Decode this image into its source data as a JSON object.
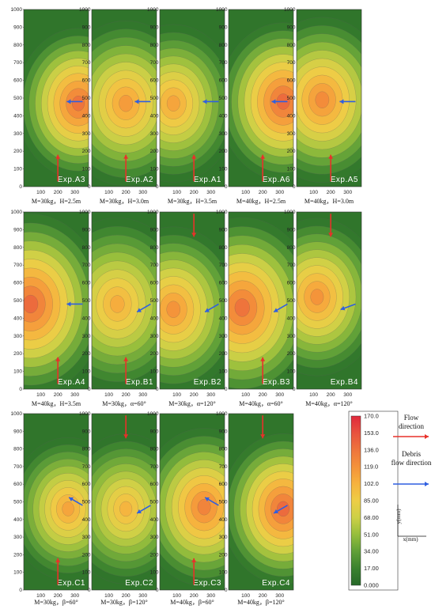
{
  "chart_data": {
    "type": "heatmap",
    "x_ticks": [
      "100",
      "200",
      "300"
    ],
    "y_ticks": [
      "0",
      "100",
      "200",
      "300",
      "400",
      "500",
      "600",
      "700",
      "800",
      "900",
      "1000"
    ],
    "xlim": [
      0,
      380
    ],
    "ylim": [
      0,
      1000
    ],
    "value_range": [
      0,
      170
    ],
    "colorbar_ticks": [
      "170.0",
      "153.0",
      "136.0",
      "119.0",
      "102.0",
      "85.00",
      "68.00",
      "51.00",
      "34.00",
      "17.00",
      "0.000"
    ],
    "colorbar_ylabel": "y(mm)",
    "colorbar_xlabel": "x(mm)",
    "legend": {
      "flow": "Flow direction",
      "debris": "Debris flow direction"
    },
    "colors": {
      "flow_arrow": "#e8312a",
      "debris_arrow": "#2f5fe0"
    },
    "panels": [
      {
        "label": "Exp.A3",
        "caption": "M=30kg，H=2.5m",
        "peak": [
          320,
          470
        ],
        "peak_value": 150,
        "spread": 1.0,
        "flow_from": "bottom",
        "debris_deg": 0
      },
      {
        "label": "Exp.A2",
        "caption": "M=30kg，H=3.0m",
        "peak": [
          200,
          470
        ],
        "peak_value": 125,
        "spread": 1.1,
        "flow_from": "bottom",
        "debris_deg": 0
      },
      {
        "label": "Exp.A1",
        "caption": "M=30kg，H=3.5m",
        "peak": [
          80,
          470
        ],
        "peak_value": 120,
        "spread": 1.05,
        "flow_from": "bottom",
        "debris_deg": 0
      },
      {
        "label": "Exp.A6",
        "caption": "M=40kg，H=2.5m",
        "peak": [
          320,
          480
        ],
        "peak_value": 155,
        "spread": 1.05,
        "flow_from": "bottom",
        "debris_deg": 0
      },
      {
        "label": "Exp.A5",
        "caption": "M=40kg，H=3.0m",
        "peak": [
          150,
          490
        ],
        "peak_value": 135,
        "spread": 1.1,
        "flow_from": "bottom",
        "debris_deg": 0
      },
      {
        "label": "Exp.A4",
        "caption": "M=40kg，H=3.5m",
        "peak": [
          40,
          480
        ],
        "peak_value": 155,
        "spread": 1.2,
        "flow_from": "bottom",
        "debris_deg": 0
      },
      {
        "label": "Exp.B1",
        "caption": "M=30kg，α=60°",
        "peak": [
          150,
          480
        ],
        "peak_value": 115,
        "spread": 1.15,
        "flow_from": "bottom",
        "debris_deg": 30
      },
      {
        "label": "Exp.B2",
        "caption": "M=30kg，α=120°",
        "peak": [
          80,
          450
        ],
        "peak_value": 130,
        "spread": 1.1,
        "flow_from": "top",
        "debris_deg": 30
      },
      {
        "label": "Exp.B3",
        "caption": "M=40kg，α=60°",
        "peak": [
          80,
          460
        ],
        "peak_value": 150,
        "spread": 1.2,
        "flow_from": "bottom",
        "debris_deg": 30
      },
      {
        "label": "Exp.B4",
        "caption": "M=40kg，α=120°",
        "peak": [
          120,
          520
        ],
        "peak_value": 130,
        "spread": 1.05,
        "flow_from": "top",
        "debris_deg": 20
      },
      {
        "label": "Exp.C1",
        "caption": "M=30kg，β=60°",
        "peak": [
          260,
          460
        ],
        "peak_value": 120,
        "spread": 0.95,
        "flow_from": "bottom",
        "debris_deg": -30
      },
      {
        "label": "Exp.C2",
        "caption": "M=30kg，β=120°",
        "peak": [
          200,
          460
        ],
        "peak_value": 110,
        "spread": 1.0,
        "flow_from": "top",
        "debris_deg": 30
      },
      {
        "label": "Exp.C3",
        "caption": "M=40kg，β=60°",
        "peak": [
          260,
          470
        ],
        "peak_value": 140,
        "spread": 1.05,
        "flow_from": "bottom",
        "debris_deg": -30
      },
      {
        "label": "Exp.C4",
        "caption": "M=40kg，β=120°",
        "peak": [
          320,
          460
        ],
        "peak_value": 155,
        "spread": 1.0,
        "flow_from": "top",
        "debris_deg": 30
      }
    ]
  }
}
